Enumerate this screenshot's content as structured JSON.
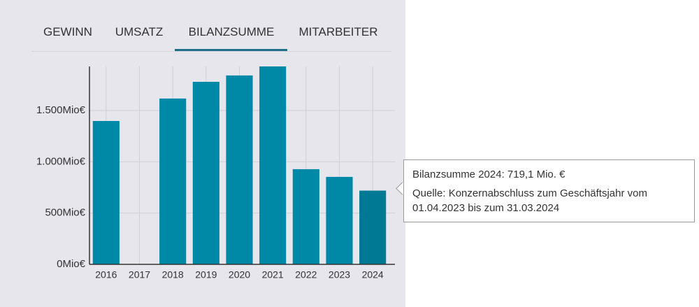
{
  "tabs": [
    "GEWINN",
    "UMSATZ",
    "BILANZSUMME",
    "MITARBEITER"
  ],
  "chart_data": {
    "type": "bar",
    "categories": [
      "2016",
      "2017",
      "2018",
      "2019",
      "2020",
      "2021",
      "2022",
      "2023",
      "2024"
    ],
    "values": [
      1398,
      null,
      1617,
      1780,
      1842,
      1930,
      928,
      853,
      719.1
    ],
    "color": "#0089a7",
    "highlight_color": "#007a94",
    "ylim": [
      0,
      1930
    ],
    "yticks": [
      {
        "value": 0,
        "label": "0Mio€"
      },
      {
        "value": 500,
        "label": "500Mio€"
      },
      {
        "value": 1000,
        "label": "1.000Mio€"
      },
      {
        "value": 1500,
        "label": "1.500Mio€"
      }
    ],
    "grid": true
  },
  "tooltip": {
    "title": "Bilanzsumme 2024:  719,1 Mio. €",
    "source": "Quelle: Konzernabschluss zum Geschäftsjahr vom 01.04.2023 bis zum 31.03.2024"
  }
}
